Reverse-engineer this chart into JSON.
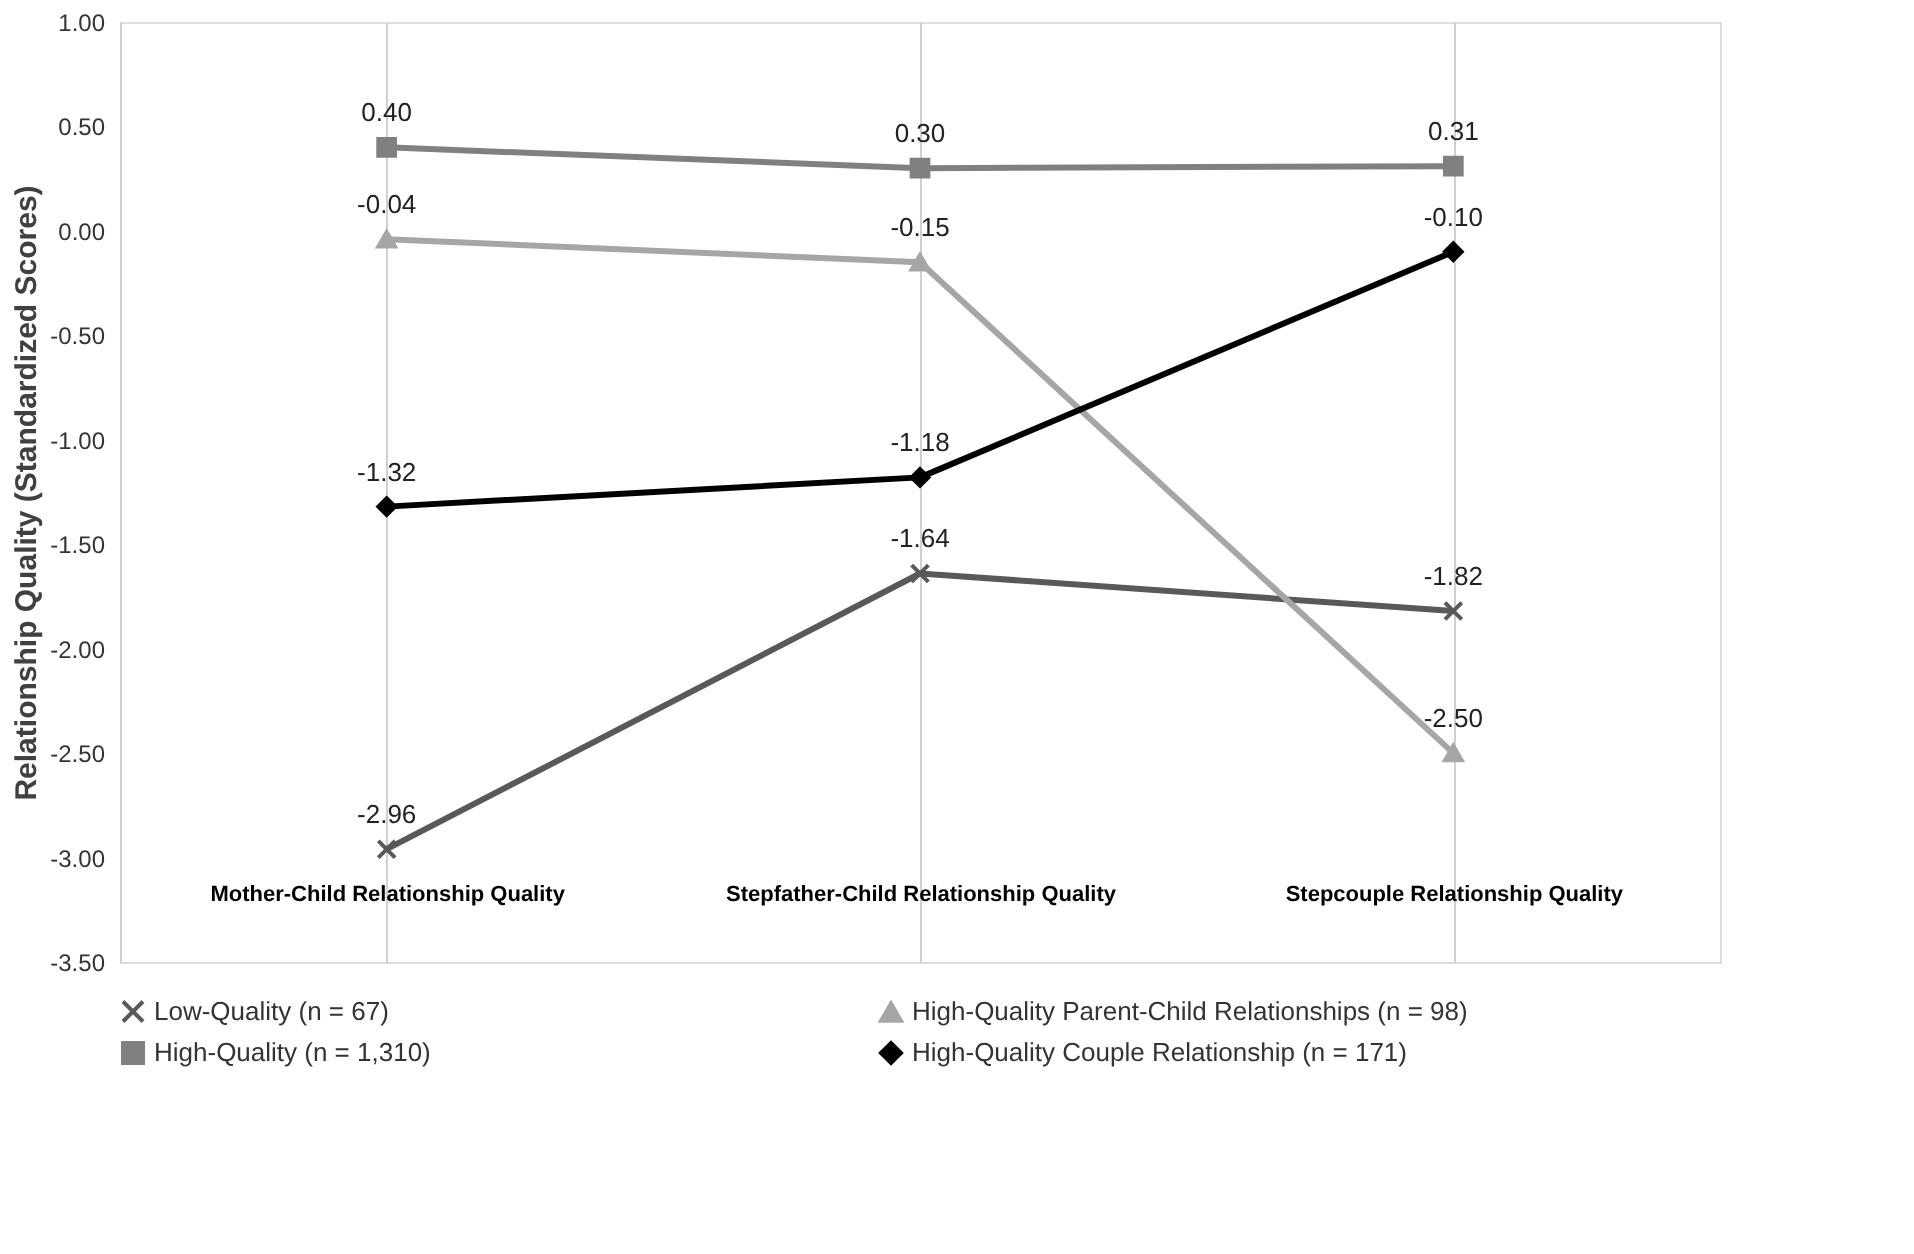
{
  "chart_data": {
    "type": "line",
    "ylabel": "Relationship Quality (Standardized Scores)",
    "categories": [
      "Mother-Child Relationship Quality",
      "Stepfather-Child Relationship Quality",
      "Stepcouple Relationship Quality"
    ],
    "series": [
      {
        "name": "Low-Quality (n = 67)",
        "color": "#595959",
        "marker": "cross",
        "values": [
          -2.96,
          -1.64,
          -1.82
        ]
      },
      {
        "name": "High-Quality Parent-Child Relationships (n = 98)",
        "color": "#a6a6a6",
        "marker": "triangle",
        "values": [
          -0.04,
          -0.15,
          -2.5
        ]
      },
      {
        "name": "High-Quality (n = 1,310)",
        "color": "#808080",
        "marker": "square",
        "values": [
          0.4,
          0.3,
          0.31
        ]
      },
      {
        "name": "High-Quality Couple Relationship (n = 171)",
        "color": "#000000",
        "marker": "diamond",
        "values": [
          -1.32,
          -1.18,
          -0.1
        ]
      }
    ],
    "ylim": [
      -3.5,
      1.0
    ],
    "yticks": [
      {
        "value": -3.5,
        "label": "-3.50"
      },
      {
        "value": -3.0,
        "label": "-3.00"
      },
      {
        "value": -2.5,
        "label": "-2.50"
      },
      {
        "value": -2.0,
        "label": "-2.00"
      },
      {
        "value": -1.5,
        "label": "-1.50"
      },
      {
        "value": -1.0,
        "label": "-1.00"
      },
      {
        "value": -0.5,
        "label": "-0.50"
      },
      {
        "value": 0.0,
        "label": "0.00"
      },
      {
        "value": 0.5,
        "label": "0.50"
      },
      {
        "value": 1.0,
        "label": "1.00"
      }
    ],
    "value_labels": [
      [
        "-2.96",
        "-1.64",
        "-1.82"
      ],
      [
        "-0.04",
        "-0.15",
        "-2.50"
      ],
      [
        "0.40",
        "0.30",
        "0.31"
      ],
      [
        "-1.32",
        "-1.18",
        "-0.10"
      ]
    ],
    "grid": "x",
    "legend": "bottom"
  }
}
